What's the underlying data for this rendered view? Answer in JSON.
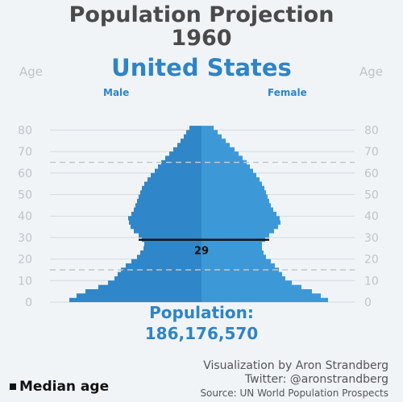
{
  "header": {
    "title": "Population Projection",
    "year": "1960",
    "country": "United States",
    "age_label_left": "Age",
    "age_label_right": "Age",
    "male_label": "Male",
    "female_label": "Female"
  },
  "population": {
    "label": "Population:",
    "value": "186,176,570"
  },
  "credits": {
    "line1": "Visualization by Aron Strandberg",
    "line2": "Twitter: @aronstrandberg",
    "line3": "Source: UN World Population Prospects"
  },
  "legend": {
    "median_label": "Median age"
  },
  "colors": {
    "male": "#2f86c8",
    "female": "#3d98d8",
    "title": "#4a4a4a",
    "accent": "#2e84c6",
    "grid": "#d5dadf",
    "dashed": "#c2c7cc"
  },
  "chart_data": {
    "type": "population_pyramid",
    "y_ticks": [
      0,
      10,
      20,
      30,
      40,
      50,
      60,
      70,
      80
    ],
    "ylim": [
      0,
      80
    ],
    "median_age": 29,
    "median_label": "29",
    "dashed_ages": [
      15,
      65
    ],
    "ages": [
      0,
      2,
      4,
      6,
      8,
      10,
      12,
      14,
      16,
      18,
      20,
      22,
      24,
      26,
      28,
      30,
      32,
      34,
      36,
      38,
      40,
      42,
      44,
      46,
      48,
      50,
      52,
      54,
      56,
      58,
      60,
      62,
      64,
      66,
      68,
      70,
      72,
      74,
      76,
      78,
      80
    ],
    "male_width": [
      164,
      155,
      144,
      128,
      116,
      108,
      104,
      100,
      94,
      87,
      80,
      76,
      72,
      71,
      74,
      78,
      84,
      88,
      90,
      91,
      87,
      84,
      82,
      80,
      78,
      76,
      74,
      71,
      67,
      63,
      58,
      54,
      50,
      45,
      40,
      35,
      30,
      26,
      22,
      19,
      15
    ],
    "female_width": [
      157,
      148,
      137,
      124,
      112,
      104,
      100,
      96,
      91,
      86,
      80,
      77,
      75,
      75,
      79,
      84,
      90,
      95,
      98,
      97,
      93,
      89,
      86,
      84,
      82,
      80,
      78,
      75,
      72,
      68,
      64,
      60,
      56,
      51,
      46,
      41,
      35,
      30,
      25,
      20,
      15
    ]
  }
}
